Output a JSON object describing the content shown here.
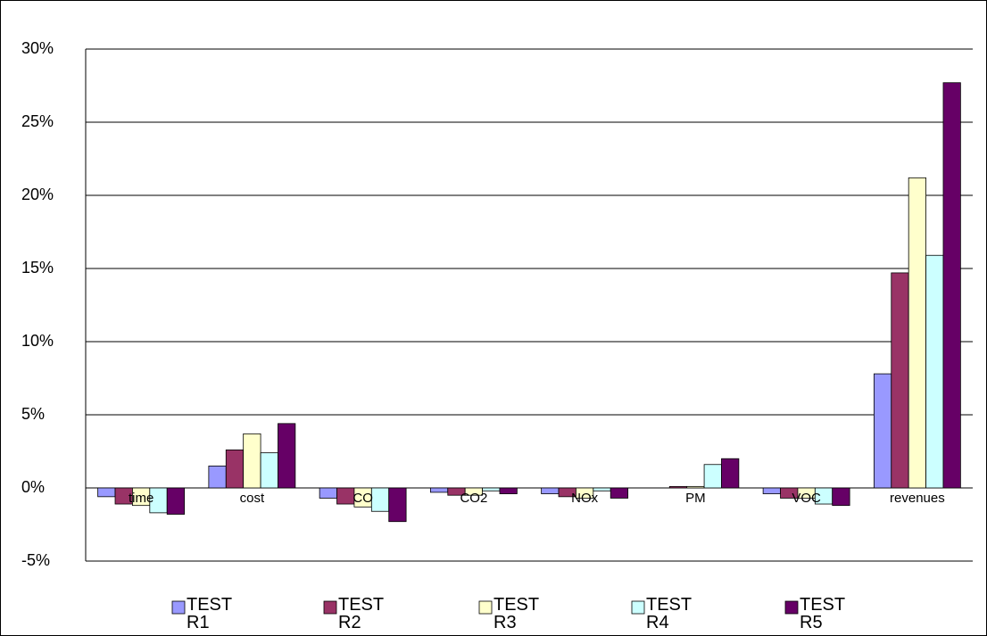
{
  "chart_data": {
    "type": "bar",
    "categories": [
      "time",
      "cost",
      "CO",
      "CO2",
      "NOx",
      "PM",
      "VOC",
      "revenues"
    ],
    "series": [
      {
        "name": "TEST R1",
        "color": "#9999ff",
        "values": [
          -0.6,
          1.5,
          -0.7,
          -0.3,
          -0.4,
          0,
          -0.4,
          7.8
        ]
      },
      {
        "name": "TEST R2",
        "color": "#993366",
        "values": [
          -1.1,
          2.6,
          -1.1,
          -0.5,
          -0.6,
          0.1,
          -0.7,
          14.7
        ]
      },
      {
        "name": "TEST R3",
        "color": "#ffffcc",
        "values": [
          -1.2,
          3.7,
          -1.3,
          -0.5,
          -0.7,
          0.1,
          -0.7,
          21.2
        ]
      },
      {
        "name": "TEST R4",
        "color": "#ccffff",
        "values": [
          -1.7,
          2.4,
          -1.6,
          -0.2,
          -0.2,
          1.6,
          -1.1,
          15.9
        ]
      },
      {
        "name": "TEST R5",
        "color": "#660066",
        "values": [
          -1.8,
          4.4,
          -2.3,
          -0.4,
          -0.7,
          2.0,
          -1.2,
          27.7
        ]
      }
    ],
    "ylim": [
      -5,
      30
    ],
    "yticks": [
      {
        "value": -5,
        "label": "-5%"
      },
      {
        "value": 0,
        "label": "0%"
      },
      {
        "value": 5,
        "label": "5%"
      },
      {
        "value": 10,
        "label": "10%"
      },
      {
        "value": 15,
        "label": "15%"
      },
      {
        "value": 20,
        "label": "20%"
      },
      {
        "value": 25,
        "label": "25%"
      },
      {
        "value": 30,
        "label": "30%"
      }
    ],
    "grid": true
  }
}
